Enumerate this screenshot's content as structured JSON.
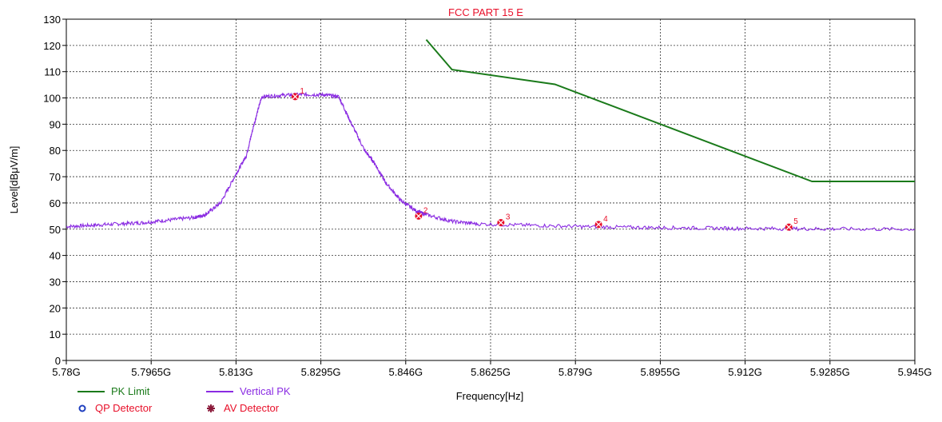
{
  "chart_data": {
    "type": "line",
    "title": "FCC PART 15 E",
    "xlabel": "Frequency[Hz]",
    "ylabel": "Level[dBμV/m]",
    "xlim": [
      5.78,
      5.945
    ],
    "ylim": [
      0,
      130
    ],
    "x_tick_labels": [
      "5.78G",
      "5.7965G",
      "5.813G",
      "5.8295G",
      "5.846G",
      "5.8625G",
      "5.879G",
      "5.8955G",
      "5.912G",
      "5.9285G",
      "5.945G"
    ],
    "x_tick_values": [
      5.78,
      5.7965,
      5.813,
      5.8295,
      5.846,
      5.8625,
      5.879,
      5.8955,
      5.912,
      5.9285,
      5.945
    ],
    "y_tick_labels": [
      "0",
      "10",
      "20",
      "30",
      "40",
      "50",
      "60",
      "70",
      "80",
      "90",
      "100",
      "110",
      "120",
      "130"
    ],
    "y_tick_values": [
      0,
      10,
      20,
      30,
      40,
      50,
      60,
      70,
      80,
      90,
      100,
      110,
      120,
      130
    ],
    "grid": true,
    "series": [
      {
        "name": "PK Limit",
        "color": "#1a7a1a",
        "x": [
          5.85,
          5.855,
          5.875,
          5.925,
          5.945
        ],
        "y": [
          122.2,
          110.8,
          105.2,
          68.2,
          68.2
        ]
      },
      {
        "name": "Vertical PK",
        "color": "#8a2be2",
        "x": [
          5.78,
          5.785,
          5.79,
          5.795,
          5.8,
          5.805,
          5.807,
          5.81,
          5.813,
          5.815,
          5.8165,
          5.818,
          5.822,
          5.826,
          5.83,
          5.833,
          5.835,
          5.838,
          5.84,
          5.842,
          5.845,
          5.848,
          5.85,
          5.855,
          5.86,
          5.87,
          5.88,
          5.89,
          5.9,
          5.91,
          5.92,
          5.93,
          5.945
        ],
        "y": [
          51,
          51.5,
          52,
          52.5,
          53.5,
          54.5,
          55.5,
          60,
          71,
          78,
          90,
          100.5,
          101,
          101.3,
          101.2,
          100.5,
          92,
          80,
          75,
          68,
          61,
          57,
          55.5,
          53,
          52,
          51.5,
          51,
          50.7,
          50.5,
          50.3,
          50.2,
          50.1,
          50
        ]
      }
    ],
    "markers": [
      {
        "label": "1",
        "x": 5.8245,
        "y": 100.5
      },
      {
        "label": "2",
        "x": 5.8485,
        "y": 55
      },
      {
        "label": "3",
        "x": 5.8645,
        "y": 52.5
      },
      {
        "label": "4",
        "x": 5.8835,
        "y": 51.8
      },
      {
        "label": "5",
        "x": 5.9205,
        "y": 50.8
      }
    ],
    "marker_color": "#e8102a",
    "legend": [
      {
        "name": "PK Limit",
        "color": "#1a7a1a",
        "symbol": "line"
      },
      {
        "name": "Vertical PK",
        "color": "#8a2be2",
        "symbol": "line"
      },
      {
        "name": "QP Detector",
        "color": "#1f3fbf",
        "symbol": "circle",
        "text_color": "#e8102a"
      },
      {
        "name": "AV Detector",
        "color": "#8b1a3a",
        "symbol": "star",
        "text_color": "#e8102a"
      }
    ],
    "legend_position": "bottom-left"
  }
}
